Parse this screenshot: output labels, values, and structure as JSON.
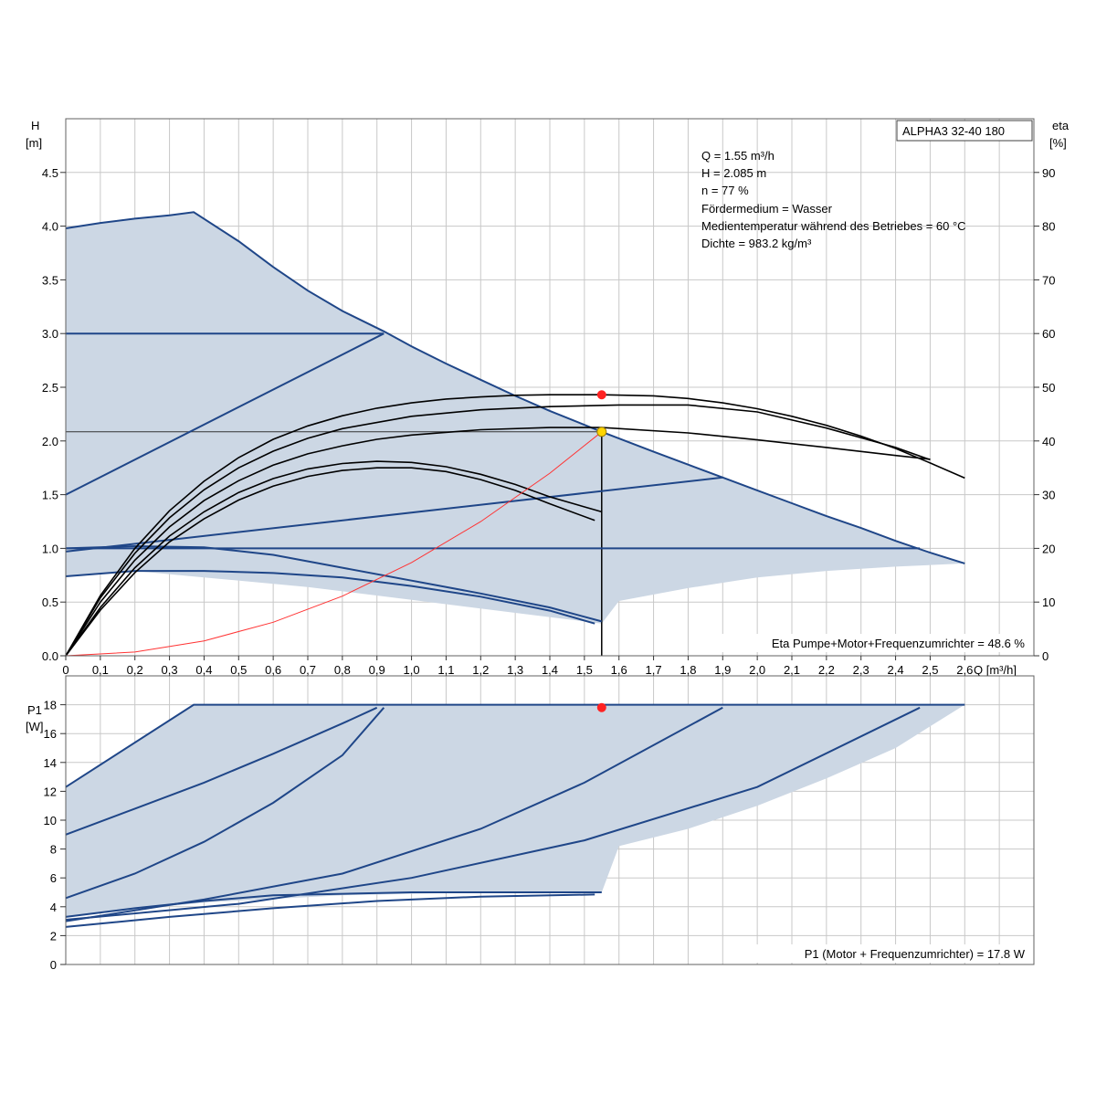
{
  "chart_data": [
    {
      "type": "line",
      "title": "ALPHA3 32-40 180",
      "ylabel": "H",
      "yunit": "[m]",
      "y2label": "eta",
      "y2unit": "[%]",
      "xlabel": "Q [m³/h]",
      "xlim": [
        0,
        2.8
      ],
      "ylim": [
        0,
        5
      ],
      "y2lim": [
        0,
        100
      ],
      "xticks": [
        "0",
        "0,1",
        "0,2",
        "0,3",
        "0,4",
        "0,5",
        "0,6",
        "0,7",
        "0,8",
        "0,9",
        "1,0",
        "1,1",
        "1,2",
        "1,3",
        "1,4",
        "1,5",
        "1,6",
        "1,7",
        "1,8",
        "1,9",
        "2,0",
        "2,1",
        "2,2",
        "2,3",
        "2,4",
        "2,5",
        "2,6"
      ],
      "yticks": [
        "0.0",
        "0.5",
        "1.0",
        "1.5",
        "2.0",
        "2.5",
        "3.0",
        "3.5",
        "4.0",
        "4.5"
      ],
      "y2ticks": [
        "0",
        "10",
        "20",
        "30",
        "40",
        "50",
        "60",
        "70",
        "80",
        "90"
      ],
      "grid": true,
      "info_lines": [
        "Q = 1.55 m³/h",
        "H = 2.085 m",
        "n = 77 %",
        "Fördermedium = Wasser",
        "Medientemperatur während des Betriebes = 60 °C",
        "Dichte = 983.2 kg/m³"
      ],
      "footer": "Eta Pumpe+Motor+Frequenzumrichter = 48.6 %",
      "colors": {
        "area": "#ccd7e4",
        "curve": "#1f4688",
        "eta": "#000000",
        "system": "#ff3333",
        "marker_red": "#ff2222",
        "marker_yellow": "#ffd500",
        "grid": "#c8c8c8"
      },
      "area": [
        [
          0,
          3.98
        ],
        [
          0.1,
          4.03
        ],
        [
          0.2,
          4.07
        ],
        [
          0.3,
          4.1
        ],
        [
          0.37,
          4.13
        ],
        [
          0.5,
          3.86
        ],
        [
          0.6,
          3.62
        ],
        [
          0.7,
          3.4
        ],
        [
          0.8,
          3.21
        ],
        [
          0.92,
          3.02
        ],
        [
          1.0,
          2.88
        ],
        [
          1.1,
          2.72
        ],
        [
          1.2,
          2.57
        ],
        [
          1.3,
          2.42
        ],
        [
          1.4,
          2.28
        ],
        [
          1.55,
          2.085
        ],
        [
          1.7,
          1.9
        ],
        [
          1.8,
          1.78
        ],
        [
          1.9,
          1.66
        ],
        [
          2.0,
          1.54
        ],
        [
          2.1,
          1.42
        ],
        [
          2.2,
          1.3
        ],
        [
          2.3,
          1.19
        ],
        [
          2.4,
          1.07
        ],
        [
          2.5,
          0.96
        ],
        [
          2.6,
          0.86
        ],
        [
          2.4,
          0.83
        ],
        [
          2.2,
          0.79
        ],
        [
          2.0,
          0.73
        ],
        [
          1.8,
          0.63
        ],
        [
          1.6,
          0.51
        ],
        [
          1.55,
          0.3
        ],
        [
          1.3,
          0.4
        ],
        [
          1.0,
          0.52
        ],
        [
          0.7,
          0.64
        ],
        [
          0.4,
          0.73
        ],
        [
          0.2,
          0.79
        ],
        [
          0,
          0.74
        ]
      ],
      "series": [
        {
          "role": "head",
          "points": [
            [
              0,
              3.98
            ],
            [
              0.1,
              4.03
            ],
            [
              0.2,
              4.07
            ],
            [
              0.3,
              4.1
            ],
            [
              0.37,
              4.13
            ],
            [
              0.5,
              3.86
            ],
            [
              0.6,
              3.62
            ],
            [
              0.7,
              3.4
            ],
            [
              0.8,
              3.21
            ],
            [
              0.92,
              3.02
            ],
            [
              1.0,
              2.88
            ],
            [
              1.1,
              2.72
            ],
            [
              1.2,
              2.57
            ],
            [
              1.3,
              2.42
            ],
            [
              1.4,
              2.28
            ],
            [
              1.55,
              2.085
            ],
            [
              1.7,
              1.9
            ],
            [
              1.8,
              1.78
            ],
            [
              1.9,
              1.66
            ],
            [
              2.0,
              1.54
            ],
            [
              2.1,
              1.42
            ],
            [
              2.2,
              1.3
            ],
            [
              2.3,
              1.19
            ],
            [
              2.4,
              1.07
            ],
            [
              2.5,
              0.96
            ],
            [
              2.6,
              0.86
            ]
          ]
        },
        {
          "role": "head",
          "points": [
            [
              0,
              3.0
            ],
            [
              0.92,
              3.0
            ]
          ]
        },
        {
          "role": "head",
          "points": [
            [
              0,
              1.0
            ],
            [
              2.47,
              1.0
            ]
          ]
        },
        {
          "role": "head",
          "points": [
            [
              0,
              1.5
            ],
            [
              0.92,
              3.0
            ]
          ]
        },
        {
          "role": "head",
          "points": [
            [
              0,
              0.97
            ],
            [
              1.9,
              1.66
            ]
          ]
        },
        {
          "role": "head",
          "points": [
            [
              0,
              0.74
            ],
            [
              0.2,
              0.79
            ],
            [
              0.4,
              0.79
            ],
            [
              0.6,
              0.77
            ],
            [
              0.8,
              0.73
            ],
            [
              1.0,
              0.65
            ],
            [
              1.2,
              0.55
            ],
            [
              1.4,
              0.42
            ],
            [
              1.53,
              0.3
            ]
          ]
        },
        {
          "role": "head",
          "points": [
            [
              0,
              1.0
            ],
            [
              0.2,
              1.02
            ],
            [
              0.4,
              1.01
            ],
            [
              0.6,
              0.94
            ],
            [
              0.8,
              0.82
            ],
            [
              1.0,
              0.7
            ],
            [
              1.2,
              0.58
            ],
            [
              1.4,
              0.45
            ],
            [
              1.55,
              0.32
            ]
          ]
        },
        {
          "role": "eta",
          "points": [
            [
              0,
              0
            ],
            [
              0.1,
              8.5
            ],
            [
              0.2,
              15.5
            ],
            [
              0.3,
              21.2
            ],
            [
              0.4,
              25.5
            ],
            [
              0.5,
              29.0
            ],
            [
              0.6,
              31.6
            ],
            [
              0.7,
              33.4
            ],
            [
              0.8,
              34.5
            ],
            [
              0.9,
              35.0
            ],
            [
              1.0,
              35.0
            ],
            [
              1.1,
              34.3
            ],
            [
              1.2,
              32.8
            ],
            [
              1.3,
              30.8
            ],
            [
              1.4,
              28.3
            ],
            [
              1.53,
              25.2
            ]
          ]
        },
        {
          "role": "eta",
          "points": [
            [
              0,
              0
            ],
            [
              0.1,
              9.0
            ],
            [
              0.2,
              16.4
            ],
            [
              0.3,
              22.3
            ],
            [
              0.4,
              26.8
            ],
            [
              0.5,
              30.4
            ],
            [
              0.6,
              33.0
            ],
            [
              0.7,
              34.8
            ],
            [
              0.8,
              35.8
            ],
            [
              0.9,
              36.2
            ],
            [
              1.0,
              36.0
            ],
            [
              1.1,
              35.2
            ],
            [
              1.2,
              33.8
            ],
            [
              1.3,
              31.9
            ],
            [
              1.4,
              29.6
            ],
            [
              1.55,
              26.8
            ]
          ]
        },
        {
          "role": "eta",
          "points": [
            [
              0,
              0
            ],
            [
              0.1,
              10.0
            ],
            [
              0.2,
              17.8
            ],
            [
              0.3,
              24.0
            ],
            [
              0.4,
              28.9
            ],
            [
              0.5,
              32.6
            ],
            [
              0.6,
              35.5
            ],
            [
              0.7,
              37.6
            ],
            [
              0.8,
              39.1
            ],
            [
              0.9,
              40.3
            ],
            [
              1.0,
              41.1
            ],
            [
              1.2,
              42.1
            ],
            [
              1.4,
              42.5
            ],
            [
              1.55,
              42.5
            ],
            [
              1.8,
              41.5
            ],
            [
              2.0,
              40.2
            ],
            [
              2.2,
              38.8
            ],
            [
              2.4,
              37.3
            ],
            [
              2.5,
              36.6
            ]
          ]
        },
        {
          "role": "eta",
          "points": [
            [
              0,
              0
            ],
            [
              0.1,
              10.8
            ],
            [
              0.2,
              19.1
            ],
            [
              0.3,
              25.7
            ],
            [
              0.4,
              30.9
            ],
            [
              0.5,
              35.0
            ],
            [
              0.6,
              38.1
            ],
            [
              0.7,
              40.5
            ],
            [
              0.8,
              42.3
            ],
            [
              1.0,
              44.6
            ],
            [
              1.2,
              45.8
            ],
            [
              1.4,
              46.4
            ],
            [
              1.6,
              46.7
            ],
            [
              1.8,
              46.7
            ],
            [
              2.0,
              45.4
            ],
            [
              2.2,
              42.4
            ],
            [
              2.4,
              38.8
            ],
            [
              2.5,
              36.5
            ]
          ]
        },
        {
          "role": "eta",
          "points": [
            [
              0,
              0
            ],
            [
              0.1,
              11.2
            ],
            [
              0.2,
              20.0
            ],
            [
              0.3,
              27.0
            ],
            [
              0.4,
              32.5
            ],
            [
              0.5,
              36.9
            ],
            [
              0.6,
              40.3
            ],
            [
              0.7,
              42.8
            ],
            [
              0.8,
              44.7
            ],
            [
              0.9,
              46.1
            ],
            [
              1.0,
              47.1
            ],
            [
              1.1,
              47.8
            ],
            [
              1.2,
              48.2
            ],
            [
              1.3,
              48.5
            ],
            [
              1.4,
              48.6
            ],
            [
              1.55,
              48.6
            ],
            [
              1.7,
              48.4
            ],
            [
              1.8,
              47.9
            ],
            [
              1.9,
              47.1
            ],
            [
              2.0,
              46.0
            ],
            [
              2.1,
              44.6
            ],
            [
              2.2,
              42.9
            ],
            [
              2.3,
              40.9
            ],
            [
              2.4,
              38.6
            ],
            [
              2.5,
              35.9
            ],
            [
              2.6,
              33.1
            ]
          ]
        },
        {
          "role": "system",
          "points": [
            [
              0,
              0
            ],
            [
              0.2,
              0.035
            ],
            [
              0.4,
              0.139
            ],
            [
              0.6,
              0.312
            ],
            [
              0.8,
              0.555
            ],
            [
              1.0,
              0.868
            ],
            [
              1.2,
              1.249
            ],
            [
              1.4,
              1.7
            ],
            [
              1.55,
              2.085
            ]
          ]
        }
      ],
      "reference_lines": {
        "q": 1.55,
        "h": 2.085
      },
      "markers": [
        {
          "role": "operating-point",
          "x": 1.55,
          "y": 2.085,
          "color": "#ffd500"
        },
        {
          "role": "eta-point",
          "x": 1.55,
          "y2": 48.6,
          "color": "#ff2222"
        }
      ]
    },
    {
      "type": "line",
      "ylabel": "P1",
      "yunit": "[W]",
      "xlim": [
        0,
        2.8
      ],
      "ylim": [
        0,
        20
      ],
      "yticks": [
        "0",
        "2",
        "4",
        "6",
        "8",
        "10",
        "12",
        "14",
        "16",
        "18"
      ],
      "grid": true,
      "footer": "P1 (Motor + Frequenzumrichter) = 17.8 W",
      "area": [
        [
          0,
          12.3
        ],
        [
          0.37,
          18.0
        ],
        [
          2.6,
          18.0
        ],
        [
          2.5,
          16.5
        ],
        [
          2.4,
          15.0
        ],
        [
          2.2,
          12.9
        ],
        [
          2.0,
          11.0
        ],
        [
          1.8,
          9.4
        ],
        [
          1.6,
          8.2
        ],
        [
          1.55,
          5.0
        ],
        [
          1.2,
          5.0
        ],
        [
          0.8,
          4.8
        ],
        [
          0.4,
          4.3
        ],
        [
          0,
          3.3
        ]
      ],
      "series": [
        {
          "role": "power",
          "points": [
            [
              0,
              12.3
            ],
            [
              0.37,
              18.0
            ],
            [
              2.6,
              18.0
            ]
          ]
        },
        {
          "role": "power",
          "points": [
            [
              0,
              9.0
            ],
            [
              0.2,
              10.8
            ],
            [
              0.4,
              12.6
            ],
            [
              0.6,
              14.6
            ],
            [
              0.8,
              16.7
            ],
            [
              0.9,
              17.8
            ]
          ]
        },
        {
          "role": "power",
          "points": [
            [
              0,
              4.6
            ],
            [
              0.2,
              6.3
            ],
            [
              0.4,
              8.5
            ],
            [
              0.6,
              11.2
            ],
            [
              0.8,
              14.5
            ],
            [
              0.92,
              17.8
            ]
          ]
        },
        {
          "role": "power",
          "points": [
            [
              0,
              3.0
            ],
            [
              0.4,
              4.5
            ],
            [
              0.8,
              6.3
            ],
            [
              1.2,
              9.4
            ],
            [
              1.5,
              12.6
            ],
            [
              1.9,
              17.8
            ]
          ]
        },
        {
          "role": "power",
          "points": [
            [
              0,
              3.1
            ],
            [
              0.5,
              4.2
            ],
            [
              1.0,
              6.0
            ],
            [
              1.5,
              8.6
            ],
            [
              2.0,
              12.3
            ],
            [
              2.47,
              17.8
            ]
          ]
        },
        {
          "role": "power",
          "points": [
            [
              0,
              3.3
            ],
            [
              0.2,
              3.9
            ],
            [
              0.4,
              4.4
            ],
            [
              0.6,
              4.8
            ],
            [
              1.0,
              5.0
            ],
            [
              1.55,
              5.0
            ]
          ]
        },
        {
          "role": "power",
          "points": [
            [
              0,
              2.6
            ],
            [
              0.3,
              3.3
            ],
            [
              0.6,
              3.9
            ],
            [
              0.9,
              4.4
            ],
            [
              1.2,
              4.7
            ],
            [
              1.53,
              4.85
            ]
          ]
        }
      ],
      "markers": [
        {
          "role": "operating-point",
          "x": 1.55,
          "y": 17.8,
          "color": "#ff2222"
        }
      ]
    }
  ]
}
